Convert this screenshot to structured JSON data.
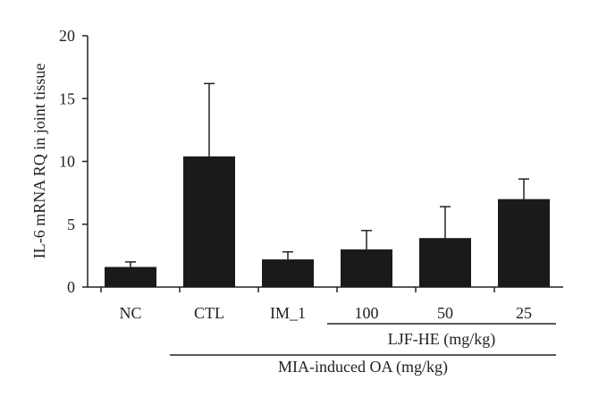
{
  "chart_data": {
    "type": "bar",
    "title": "",
    "ylabel": "IL-6 mRNA RQ in joint tissue",
    "xlabel": "",
    "ylim": [
      0,
      20
    ],
    "yticks": [
      0,
      5,
      10,
      15,
      20
    ],
    "categories": [
      "NC",
      "CTL",
      "IM_1",
      "100",
      "50",
      "25"
    ],
    "values": [
      1.6,
      10.4,
      2.2,
      3.0,
      3.9,
      7.0
    ],
    "error": [
      0.4,
      5.8,
      0.6,
      1.5,
      2.5,
      1.6
    ],
    "bar_color": "#1a1a1a",
    "groups": [
      {
        "label": "LJF-HE (mg/kg)",
        "from": 3,
        "to": 5
      },
      {
        "label": "MIA-induced OA (mg/kg)",
        "from": 1,
        "to": 5
      }
    ],
    "grid": false,
    "legend": "none"
  }
}
